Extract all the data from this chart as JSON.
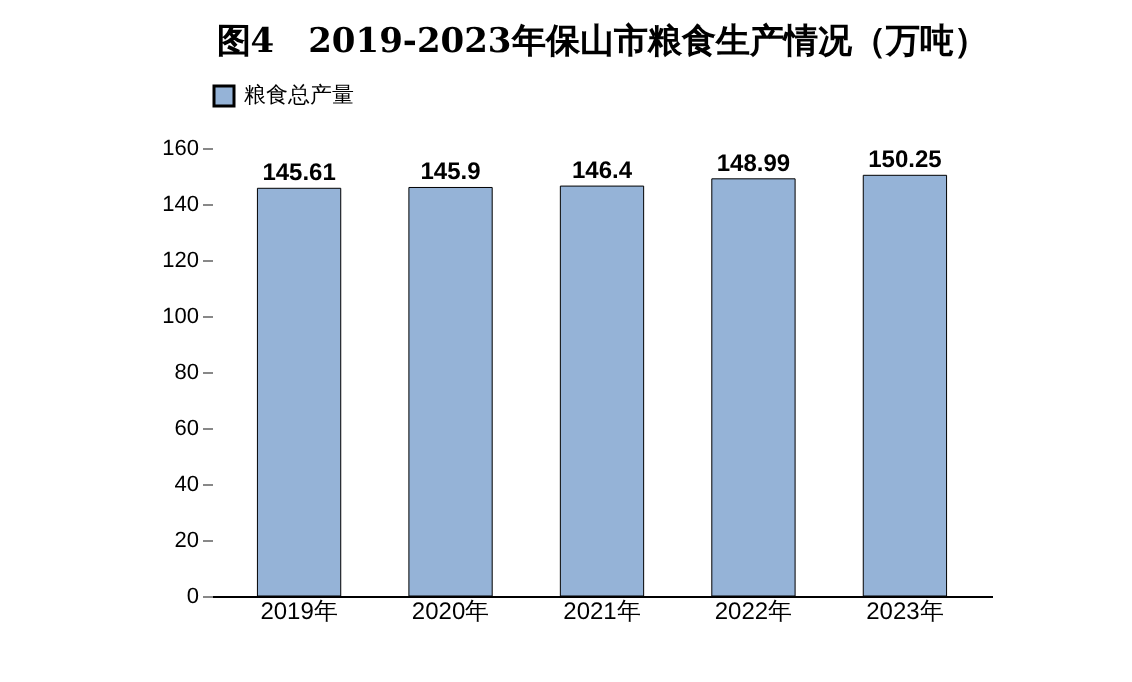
{
  "chart_data": {
    "type": "bar",
    "title": "图4　2019-2023年保山市粮食生产情况（万吨）",
    "categories": [
      "2019年",
      "2020年",
      "2021年",
      "2022年",
      "2023年"
    ],
    "series": [
      {
        "name": "粮食总产量",
        "color": "#95b3d7",
        "values": [
          145.61,
          145.9,
          146.4,
          148.99,
          150.25
        ]
      }
    ],
    "ylim": [
      0,
      160
    ],
    "yticks": [
      0,
      20,
      40,
      60,
      80,
      100,
      120,
      140,
      160
    ],
    "grid": false,
    "legend": "top",
    "data_labels": true
  }
}
